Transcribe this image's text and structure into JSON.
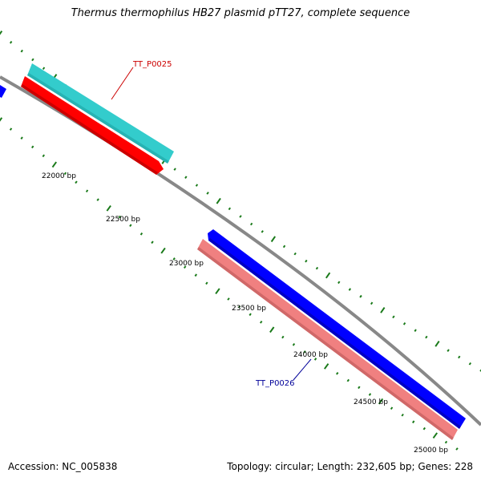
{
  "title": "Thermus thermophilus HB27 plasmid pTT27, complete sequence",
  "footer": {
    "accession": "Accession: NC_005838",
    "summary": "Topology: circular; Length: 232,605 bp; Genes: 228"
  },
  "colors": {
    "backbone": "#888888",
    "ticks": "#1a7a1a",
    "forward_cds": "#33cccc",
    "forward_gene": "#ff0000",
    "reverse_cds": "#0000ff",
    "reverse_gene": "#f08080",
    "label_forward": "#cc0000",
    "label_reverse": "#000099"
  },
  "ticks": [
    {
      "label": "22000 bp"
    },
    {
      "label": "22500 bp"
    },
    {
      "label": "23000 bp"
    },
    {
      "label": "23500 bp"
    },
    {
      "label": "24000 bp"
    },
    {
      "label": "24500 bp"
    },
    {
      "label": "25000 bp"
    }
  ],
  "features": [
    {
      "label": "TT_P0025",
      "strand": "forward"
    },
    {
      "label": "TT_P0026",
      "strand": "reverse"
    }
  ]
}
